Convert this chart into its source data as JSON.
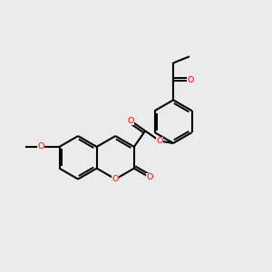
{
  "bg": "#ebebeb",
  "bond_color": "#000000",
  "O_color": "#ff0000",
  "lw": 1.5,
  "fs": 6.8,
  "xlim": [
    0,
    10
  ],
  "ylim": [
    0,
    10
  ],
  "figsize": [
    3.0,
    3.0
  ],
  "dpi": 100
}
